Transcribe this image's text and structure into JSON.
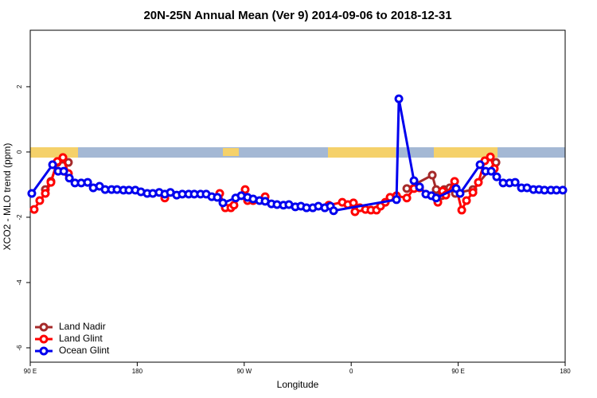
{
  "chart_data": {
    "type": "line",
    "title": "20N-25N Annual Mean (Ver 9)   2014-09-06 to 2018-12-31",
    "x_label": "Longitude",
    "y_label": "XCO2 - MLO trend (ppm)",
    "xlim": [
      90,
      540
    ],
    "ylim": [
      -6.44,
      3.73
    ],
    "xticks": [
      {
        "value": 90,
        "label": "90 E"
      },
      {
        "value": 180,
        "label": "180"
      },
      {
        "value": 270,
        "label": "90 W"
      },
      {
        "value": 360,
        "label": "0"
      },
      {
        "value": 450,
        "label": "90 E"
      },
      {
        "value": 540,
        "label": "180"
      }
    ],
    "yticks": [
      -6,
      -4,
      -2,
      0,
      2
    ],
    "legend": "bottom-left",
    "series": [
      {
        "name": "Land Nadir",
        "color": "#a52a2a",
        "x": [
          102.7,
          107.4,
          112.8,
          122.1,
          null,
          406.8,
          428.2,
          431.5,
          436.2,
          438.2,
          442.9,
          447.6,
          462.4,
          481.8
        ],
        "values": [
          -1.15,
          -0.9,
          -0.32,
          -0.32,
          null,
          -1.12,
          -0.71,
          -1.15,
          -1.34,
          -1.15,
          -1.1,
          -1.27,
          -1.15,
          -0.32
        ]
      },
      {
        "name": "Land Glint",
        "color": "#ff0000",
        "x": [
          93.3,
          98.0,
          102.7,
          107.4,
          112.8,
          117.5,
          122.1,
          null,
          203.2,
          null,
          249.4,
          254.1,
          258.8,
          261.4,
          270.8,
          272.8,
          277.5,
          287.6,
          null,
          341.1,
          352.5,
          357.2,
          361.9,
          363.2,
          367.3,
          372.0,
          376.6,
          381.3,
          384.7,
          388.7,
          392.7,
          398.1,
          406.8,
          412.8,
          417.5,
          432.9,
          436.9,
          439.6,
          447.0,
          453.0,
          457.0,
          462.4,
          467.0,
          472.4,
          477.1,
          480.4
        ],
        "values": [
          -1.76,
          -1.49,
          -1.27,
          -0.93,
          -0.29,
          -0.17,
          -0.66,
          null,
          -1.41,
          null,
          -1.27,
          -1.71,
          -1.71,
          -1.63,
          -1.15,
          -1.49,
          -1.49,
          -1.37,
          null,
          -1.63,
          -1.54,
          -1.61,
          -1.56,
          -1.83,
          -1.71,
          -1.76,
          -1.78,
          -1.78,
          -1.66,
          -1.54,
          -1.39,
          -1.34,
          -1.41,
          -1.12,
          -1.1,
          -1.54,
          -1.2,
          -1.32,
          -0.9,
          -1.78,
          -1.49,
          -1.24,
          -0.93,
          -0.27,
          -0.15,
          -0.51
        ]
      },
      {
        "name": "Ocean Glint",
        "color": "#0000ee",
        "x": [
          91.3,
          108.8,
          113.5,
          118.2,
          122.9,
          127.6,
          132.9,
          138.3,
          143.0,
          148.3,
          153.0,
          158.4,
          163.0,
          168.4,
          173.0,
          178.4,
          183.1,
          188.4,
          193.1,
          198.5,
          203.2,
          207.9,
          213.2,
          217.9,
          223.3,
          228.0,
          233.3,
          238.0,
          242.7,
          247.4,
          252.1,
          262.8,
          267.5,
          272.8,
          277.5,
          282.9,
          287.6,
          292.9,
          297.6,
          303.0,
          307.6,
          313.0,
          317.7,
          322.4,
          327.7,
          332.4,
          337.8,
          342.5,
          345.2,
          398.1,
          400.1,
          412.8,
          417.5,
          422.8,
          427.5,
          431.5,
          448.3,
          451.6,
          468.4,
          473.1,
          477.8,
          482.4,
          487.8,
          493.2,
          497.9,
          503.2,
          507.9,
          513.3,
          518.0,
          522.6,
          528.0,
          532.7,
          538.0
        ],
        "values": [
          -1.27,
          -0.39,
          -0.59,
          -0.59,
          -0.8,
          -0.95,
          -0.95,
          -0.93,
          -1.1,
          -1.05,
          -1.15,
          -1.15,
          -1.15,
          -1.17,
          -1.17,
          -1.17,
          -1.22,
          -1.27,
          -1.27,
          -1.24,
          -1.29,
          -1.24,
          -1.32,
          -1.29,
          -1.29,
          -1.29,
          -1.29,
          -1.29,
          -1.37,
          -1.39,
          -1.56,
          -1.41,
          -1.34,
          -1.39,
          -1.44,
          -1.49,
          -1.51,
          -1.59,
          -1.61,
          -1.63,
          -1.61,
          -1.68,
          -1.66,
          -1.71,
          -1.71,
          -1.66,
          -1.71,
          -1.66,
          -1.8,
          -1.46,
          1.63,
          -0.88,
          -1.07,
          -1.29,
          -1.34,
          -1.41,
          -1.12,
          -1.27,
          -0.39,
          -0.59,
          -0.59,
          -0.76,
          -0.95,
          -0.95,
          -0.93,
          -1.1,
          -1.1,
          -1.15,
          -1.15,
          -1.17,
          -1.17,
          -1.17,
          -1.17
        ]
      }
    ]
  }
}
